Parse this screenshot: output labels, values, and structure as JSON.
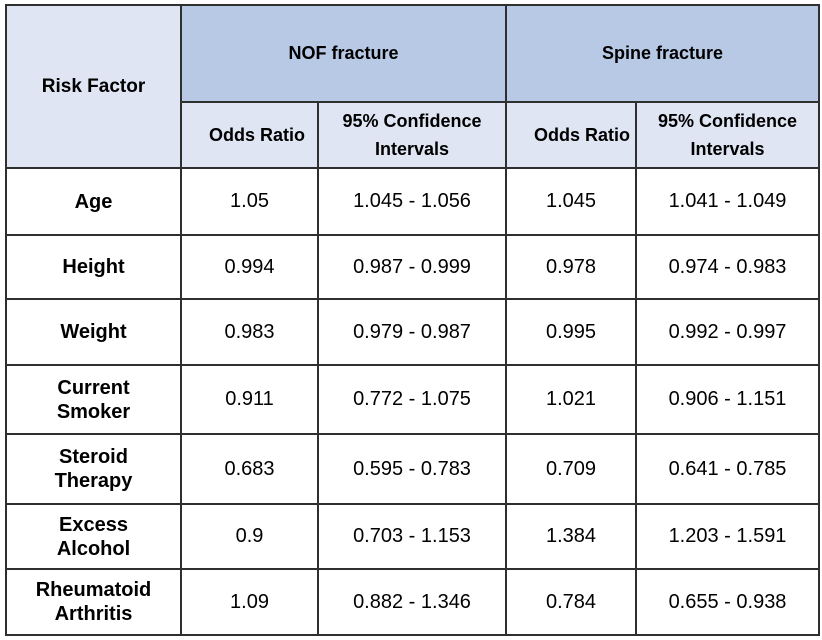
{
  "table": {
    "header": {
      "risk_factor": "Risk Factor",
      "groups": [
        "NOF fracture",
        "Spine fracture"
      ],
      "subheaders": [
        "Odds Ratio",
        "95% Confidence Intervals",
        "Odds Ratio",
        "95% Confidence Intervals"
      ]
    },
    "rows": [
      [
        "Age",
        "1.05",
        "1.045 - 1.056",
        "1.045",
        "1.041 - 1.049"
      ],
      [
        "Height",
        "0.994",
        "0.987 - 0.999",
        "0.978",
        "0.974 - 0.983"
      ],
      [
        "Weight",
        "0.983",
        "0.979 - 0.987",
        "0.995",
        "0.992 - 0.997"
      ],
      [
        "Current Smoker",
        "0.911",
        "0.772 - 1.075",
        "1.021",
        "0.906 - 1.151"
      ],
      [
        "Steroid Therapy",
        "0.683",
        "0.595 - 0.783",
        "0.709",
        "0.641 - 0.785"
      ],
      [
        "Excess Alcohol",
        "0.9",
        "0.703 - 1.153",
        "1.384",
        "1.203 - 1.591"
      ],
      [
        "Rheumatoid Arthritis",
        "1.09",
        "0.882 - 1.346",
        "0.784",
        "0.655 - 0.938"
      ]
    ]
  }
}
